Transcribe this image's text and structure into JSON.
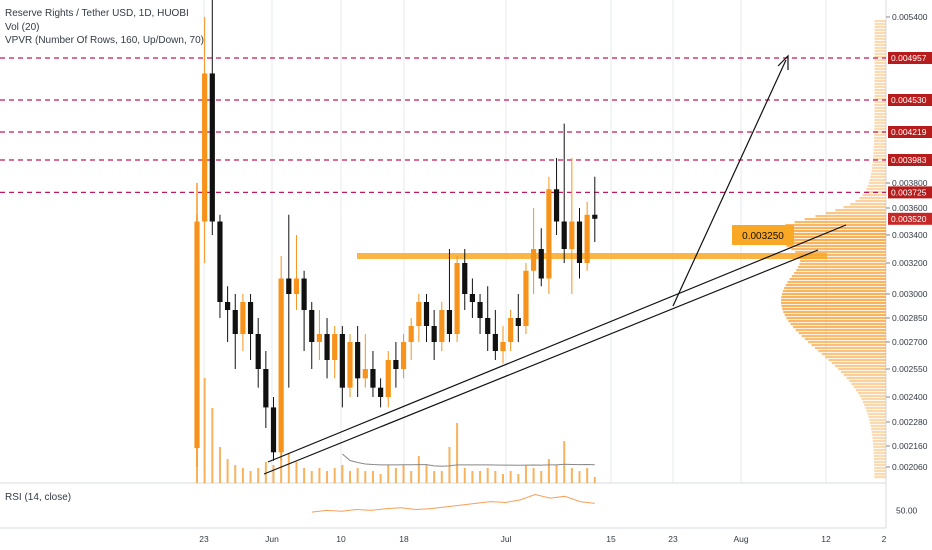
{
  "legend": {
    "title": "Reserve Rights / Tether USD, 1D, HUOBI",
    "volume": "Vol (20)",
    "vpvr": "VPVR (Number Of Rows, 160, Up/Down, 70)",
    "rsi": "RSI (14, close)"
  },
  "colors": {
    "up": "#f7931a",
    "down": "#111111",
    "resistance_line": "#c2185b",
    "support_zone": "#f9a825",
    "badge_red": "#b71c1c",
    "vpvr": "#f7a035",
    "rsi_line": "#f5a05a",
    "grid": "#e6e9ee"
  },
  "chart_data": {
    "type": "candlestick",
    "price_axis_ticks": [
      "0.005400",
      "0.003800",
      "0.003600",
      "0.003400",
      "0.003200",
      "0.003000",
      "0.002850",
      "0.002700",
      "0.002550",
      "0.002400",
      "0.002280",
      "0.002160",
      "0.002060"
    ],
    "price_tags": [
      {
        "label": "0.004957",
        "value": 0.004957,
        "style": "red"
      },
      {
        "label": "0.004530",
        "value": 0.00453,
        "style": "red"
      },
      {
        "label": "0.004219",
        "value": 0.004219,
        "style": "red"
      },
      {
        "label": "0.003983",
        "value": 0.003983,
        "style": "red"
      },
      {
        "label": "0.003725",
        "value": 0.003725,
        "style": "red"
      },
      {
        "label": "0.003520",
        "value": 0.00352,
        "style": "current"
      }
    ],
    "time_axis_ticks": [
      "23",
      "Jun",
      "10",
      "18",
      "Jul",
      "15",
      "23",
      "Aug",
      "12",
      "2"
    ],
    "resistance_levels": [
      0.004957,
      0.00453,
      0.004219,
      0.003983,
      0.003725
    ],
    "support_level": {
      "label": "0.003250",
      "value": 0.00325
    },
    "rsi_axis_tick": "50.00",
    "candles": [
      {
        "o": 0.00215,
        "h": 0.00355,
        "l": 0.00206,
        "c": 0.0035
      },
      {
        "o": 0.0035,
        "h": 0.0054,
        "l": 0.0032,
        "c": 0.0048
      },
      {
        "o": 0.0048,
        "h": 0.0056,
        "l": 0.0034,
        "c": 0.0035
      },
      {
        "o": 0.0035,
        "h": 0.00355,
        "l": 0.00285,
        "c": 0.00295
      },
      {
        "o": 0.00295,
        "h": 0.00305,
        "l": 0.0027,
        "c": 0.0029
      },
      {
        "o": 0.0029,
        "h": 0.003,
        "l": 0.00255,
        "c": 0.00275
      },
      {
        "o": 0.00275,
        "h": 0.003,
        "l": 0.00265,
        "c": 0.00295
      },
      {
        "o": 0.00295,
        "h": 0.003,
        "l": 0.0026,
        "c": 0.00275
      },
      {
        "o": 0.00275,
        "h": 0.00285,
        "l": 0.00245,
        "c": 0.00255
      },
      {
        "o": 0.00255,
        "h": 0.00265,
        "l": 0.00225,
        "c": 0.00235
      },
      {
        "o": 0.00235,
        "h": 0.0024,
        "l": 0.00209,
        "c": 0.00213
      },
      {
        "o": 0.00213,
        "h": 0.00325,
        "l": 0.00209,
        "c": 0.0031
      },
      {
        "o": 0.0031,
        "h": 0.00355,
        "l": 0.00245,
        "c": 0.003
      },
      {
        "o": 0.003,
        "h": 0.0034,
        "l": 0.0029,
        "c": 0.0031
      },
      {
        "o": 0.0031,
        "h": 0.00315,
        "l": 0.00265,
        "c": 0.0029
      },
      {
        "o": 0.0029,
        "h": 0.00295,
        "l": 0.00255,
        "c": 0.0027
      },
      {
        "o": 0.0027,
        "h": 0.0029,
        "l": 0.0026,
        "c": 0.00275
      },
      {
        "o": 0.00275,
        "h": 0.00285,
        "l": 0.0025,
        "c": 0.0026
      },
      {
        "o": 0.0026,
        "h": 0.0028,
        "l": 0.0025,
        "c": 0.00275
      },
      {
        "o": 0.00275,
        "h": 0.0028,
        "l": 0.00235,
        "c": 0.00245
      },
      {
        "o": 0.00245,
        "h": 0.00275,
        "l": 0.0024,
        "c": 0.0027
      },
      {
        "o": 0.0027,
        "h": 0.0028,
        "l": 0.0024,
        "c": 0.0025
      },
      {
        "o": 0.0025,
        "h": 0.00275,
        "l": 0.00245,
        "c": 0.00255
      },
      {
        "o": 0.00255,
        "h": 0.00265,
        "l": 0.0024,
        "c": 0.00245
      },
      {
        "o": 0.00245,
        "h": 0.0025,
        "l": 0.00235,
        "c": 0.0024
      },
      {
        "o": 0.0024,
        "h": 0.00265,
        "l": 0.00235,
        "c": 0.0026
      },
      {
        "o": 0.0026,
        "h": 0.0027,
        "l": 0.00245,
        "c": 0.00255
      },
      {
        "o": 0.00255,
        "h": 0.00275,
        "l": 0.0025,
        "c": 0.0027
      },
      {
        "o": 0.0027,
        "h": 0.00285,
        "l": 0.0026,
        "c": 0.0028
      },
      {
        "o": 0.0028,
        "h": 0.003,
        "l": 0.0027,
        "c": 0.00295
      },
      {
        "o": 0.00295,
        "h": 0.003,
        "l": 0.0027,
        "c": 0.0028
      },
      {
        "o": 0.0028,
        "h": 0.0029,
        "l": 0.0026,
        "c": 0.0027
      },
      {
        "o": 0.0027,
        "h": 0.00295,
        "l": 0.00265,
        "c": 0.0029
      },
      {
        "o": 0.0029,
        "h": 0.0033,
        "l": 0.0027,
        "c": 0.00275
      },
      {
        "o": 0.00275,
        "h": 0.00325,
        "l": 0.0027,
        "c": 0.0032
      },
      {
        "o": 0.0032,
        "h": 0.0033,
        "l": 0.0029,
        "c": 0.003
      },
      {
        "o": 0.003,
        "h": 0.0031,
        "l": 0.00285,
        "c": 0.00295
      },
      {
        "o": 0.00295,
        "h": 0.003,
        "l": 0.00275,
        "c": 0.00285
      },
      {
        "o": 0.00285,
        "h": 0.00305,
        "l": 0.00265,
        "c": 0.00275
      },
      {
        "o": 0.00275,
        "h": 0.0029,
        "l": 0.0026,
        "c": 0.00265
      },
      {
        "o": 0.00265,
        "h": 0.0028,
        "l": 0.00258,
        "c": 0.0027
      },
      {
        "o": 0.0027,
        "h": 0.0029,
        "l": 0.00265,
        "c": 0.00285
      },
      {
        "o": 0.00285,
        "h": 0.003,
        "l": 0.0027,
        "c": 0.0028
      },
      {
        "o": 0.0028,
        "h": 0.0032,
        "l": 0.00275,
        "c": 0.00315
      },
      {
        "o": 0.00315,
        "h": 0.0036,
        "l": 0.003,
        "c": 0.0033
      },
      {
        "o": 0.0033,
        "h": 0.00345,
        "l": 0.00305,
        "c": 0.0031
      },
      {
        "o": 0.0031,
        "h": 0.00385,
        "l": 0.003,
        "c": 0.00375
      },
      {
        "o": 0.00375,
        "h": 0.004,
        "l": 0.0034,
        "c": 0.0035
      },
      {
        "o": 0.0035,
        "h": 0.0043,
        "l": 0.0032,
        "c": 0.0033
      },
      {
        "o": 0.0033,
        "h": 0.004,
        "l": 0.003,
        "c": 0.0035
      },
      {
        "o": 0.0035,
        "h": 0.0036,
        "l": 0.0031,
        "c": 0.0032
      },
      {
        "o": 0.0032,
        "h": 0.00365,
        "l": 0.00315,
        "c": 0.00355
      },
      {
        "o": 0.00355,
        "h": 0.00385,
        "l": 0.00335,
        "c": 0.00352
      }
    ],
    "volumes": [
      1.0,
      0.35,
      0.25,
      0.12,
      0.08,
      0.06,
      0.05,
      0.04,
      0.05,
      0.07,
      0.06,
      0.22,
      0.1,
      0.07,
      0.05,
      0.04,
      0.05,
      0.04,
      0.05,
      0.06,
      0.04,
      0.05,
      0.04,
      0.04,
      0.03,
      0.06,
      0.05,
      0.06,
      0.04,
      0.09,
      0.06,
      0.04,
      0.04,
      0.12,
      0.2,
      0.05,
      0.04,
      0.04,
      0.05,
      0.04,
      0.03,
      0.04,
      0.03,
      0.06,
      0.05,
      0.04,
      0.08,
      0.06,
      0.14,
      0.05,
      0.04,
      0.05,
      0.02
    ],
    "rsi_values": [
      48,
      50,
      49,
      51,
      50,
      52,
      53,
      51,
      52,
      54,
      56,
      58,
      60,
      59,
      62,
      68,
      64,
      66,
      60,
      58
    ]
  }
}
